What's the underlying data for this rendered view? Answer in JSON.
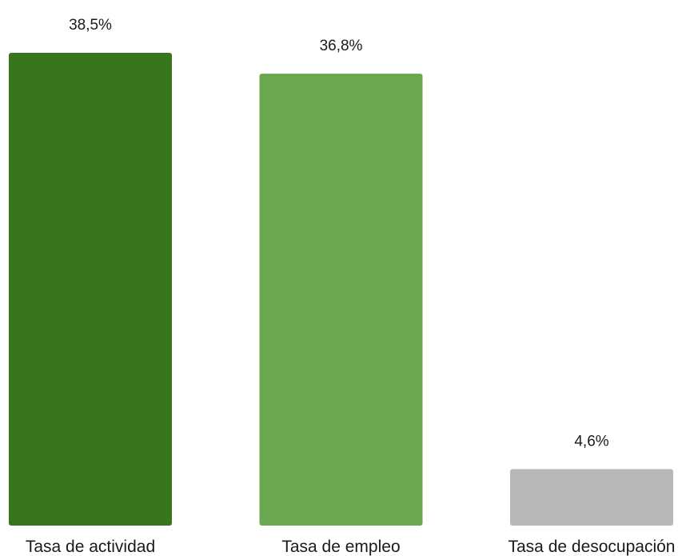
{
  "chart_data": {
    "type": "bar",
    "categories": [
      "Tasa de actividad",
      "Tasa de empleo",
      "Tasa de desocupación"
    ],
    "values": [
      38.5,
      36.8,
      4.6
    ],
    "value_labels": [
      "38,5%",
      "36,8%",
      "4,6%"
    ],
    "colors": [
      "#38761d",
      "#6aa84f",
      "#b7b7b7"
    ],
    "title": "",
    "xlabel": "",
    "ylabel": "",
    "ylim": [
      0,
      38.5
    ],
    "grid": false,
    "legend": "none"
  }
}
